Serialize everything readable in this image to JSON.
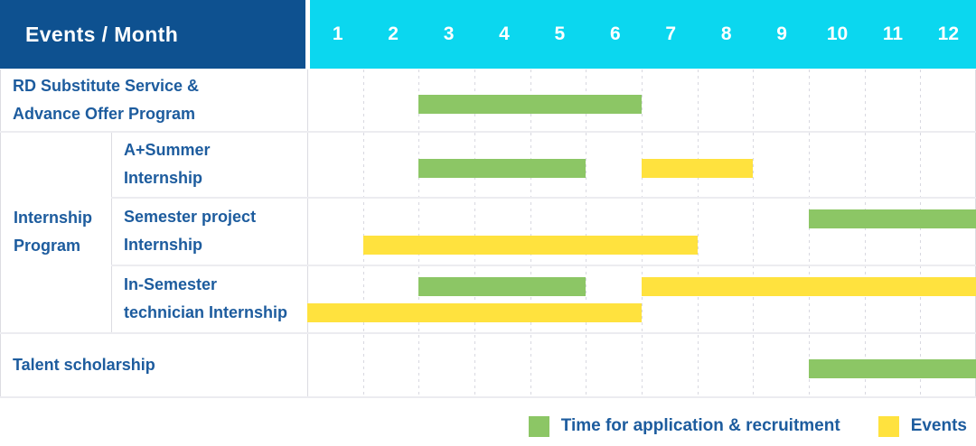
{
  "header": {
    "title": "Events / Month"
  },
  "colors": {
    "corner_bg": "#0E5190",
    "month_bar_bg": "#0BD7EF",
    "header_text": "#FFFFFF",
    "label_text": "#1D5C9E",
    "green": "#8CC665",
    "yellow": "#FFE23E",
    "grid_dash": "#D8D8E0",
    "row_line": "#ECECF0",
    "table_border": "#DCDCE2"
  },
  "chart_data": {
    "type": "gantt",
    "title": "Events / Month",
    "x_unit": "month",
    "x_range": [
      1,
      12
    ],
    "grid": "on",
    "legend_position": "bottom-right",
    "months": [
      "1",
      "2",
      "3",
      "4",
      "5",
      "6",
      "7",
      "8",
      "9",
      "10",
      "11",
      "12"
    ],
    "legend": [
      {
        "color_key": "green",
        "label": "Time for application & recruitment"
      },
      {
        "color_key": "yellow",
        "label": "Events"
      }
    ],
    "rows": [
      {
        "label": "RD Substitute Service &\nAdvance Offer Program",
        "group": null,
        "bars": [
          {
            "color": "green",
            "start_month": 3,
            "end_month": 6,
            "line": "center"
          }
        ]
      },
      {
        "label": "A+Summer\nInternship",
        "group": "Internship\nProgram",
        "bars": [
          {
            "color": "green",
            "start_month": 3,
            "end_month": 5,
            "line": "center"
          },
          {
            "color": "yellow",
            "start_month": 7,
            "end_month": 8,
            "line": "center"
          }
        ]
      },
      {
        "label": "Semester project\nInternship",
        "group": "Internship\nProgram",
        "bars": [
          {
            "color": "green",
            "start_month": 10,
            "end_month": 12,
            "line": "upper"
          },
          {
            "color": "yellow",
            "start_month": 2,
            "end_month": 7,
            "line": "lower"
          }
        ]
      },
      {
        "label": "In-Semester\ntechnician Internship",
        "group": "Internship\nProgram",
        "bars": [
          {
            "color": "green",
            "start_month": 3,
            "end_month": 5,
            "line": "upper"
          },
          {
            "color": "yellow",
            "start_month": 7,
            "end_month": 12,
            "line": "upper"
          },
          {
            "color": "yellow",
            "start_month": 1,
            "end_month": 6,
            "line": "lower"
          }
        ]
      },
      {
        "label": "Talent scholarship",
        "group": null,
        "bars": [
          {
            "color": "green",
            "start_month": 10,
            "end_month": 12,
            "line": "center"
          }
        ]
      }
    ]
  }
}
